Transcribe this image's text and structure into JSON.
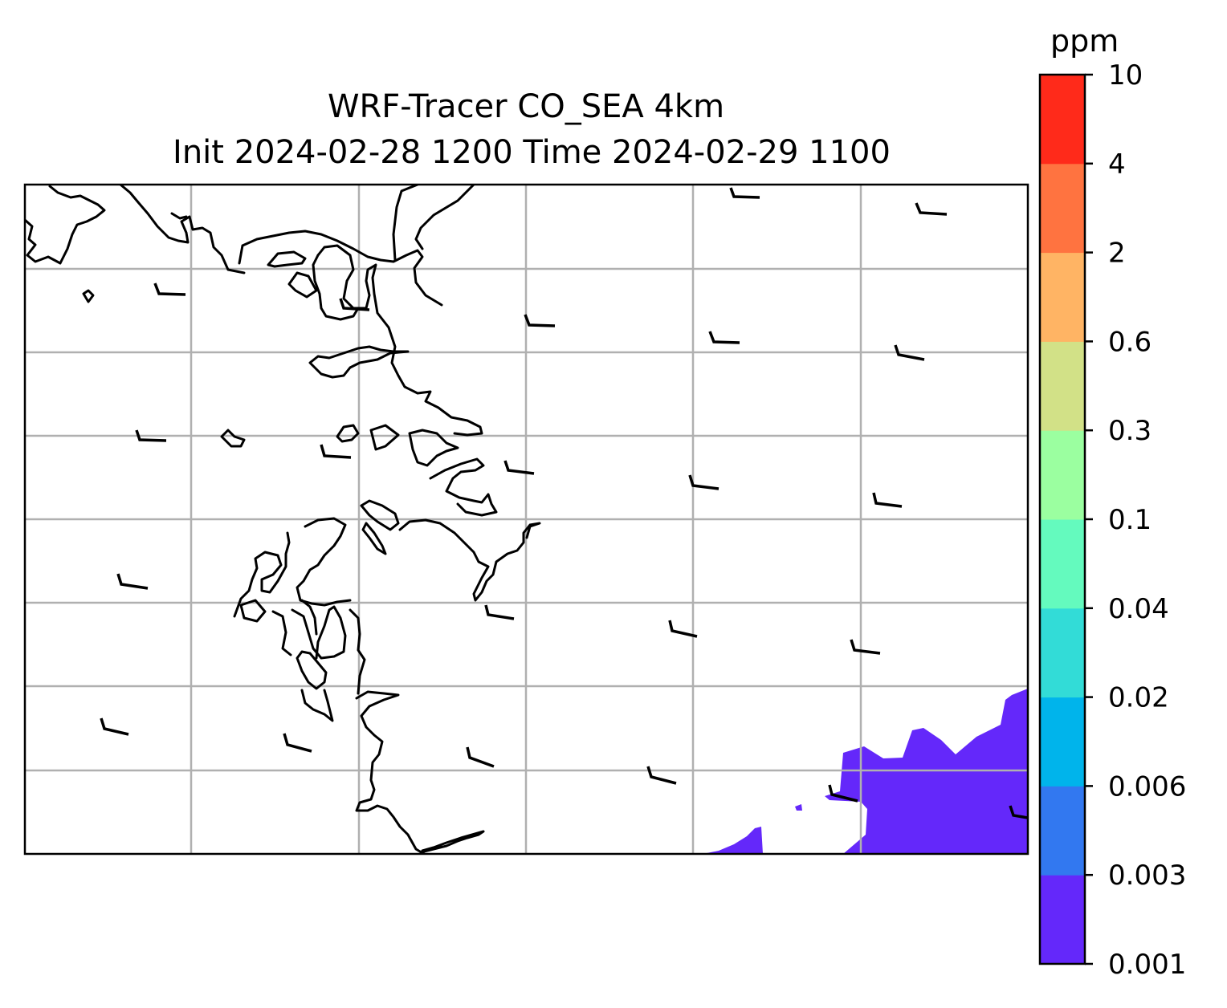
{
  "title": {
    "line1": "WRF-Tracer CO_SEA 4km",
    "line2": "Init 2024-02-28 1200 Time 2024-02-29 1100"
  },
  "colorbar": {
    "unit": "ppm",
    "levels": [
      "0.001",
      "0.003",
      "0.006",
      "0.02",
      "0.04",
      "0.1",
      "0.3",
      "0.6",
      "2",
      "4",
      "10"
    ],
    "colors": [
      "#6428fa",
      "#3278f0",
      "#00b4eb",
      "#32dcd7",
      "#64fabe",
      "#9bffa0",
      "#d2e187",
      "#ffb464",
      "#ff7340",
      "#ff2a1a"
    ]
  },
  "map": {
    "coastline_color": "#000000",
    "gridline_color": "#b0b0b0",
    "tracer_field": {
      "visible_range_ppm": [
        "0.001",
        "0.003"
      ],
      "color": "#6428fa",
      "location": "bottom-right"
    },
    "wind_barbs": "black"
  }
}
